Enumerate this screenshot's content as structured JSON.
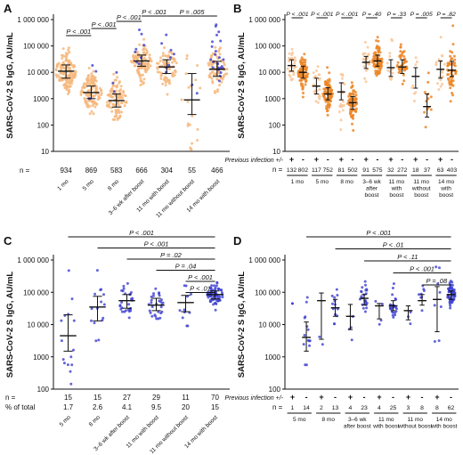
{
  "figure": {
    "ylabel": "SARS-CoV-2 S IgG, AU/mL",
    "y_ticks": [
      "1 000 000",
      "100 000",
      "10 000",
      "1000",
      "100",
      "10"
    ]
  },
  "chart_data": [
    {
      "id": "A",
      "type": "scatter",
      "ylabel": "SARS-CoV-2 S IgG, AU/mL",
      "yscale": "log",
      "ylim": [
        10,
        1000000
      ],
      "groups": [
        {
          "label": "1 mo",
          "n": "934",
          "median": 11000,
          "q1": 6000,
          "q3": 19000,
          "color": "orange"
        },
        {
          "label": "5 mo",
          "n": "869",
          "median": 1700,
          "q1": 1000,
          "q3": 3000,
          "color": "orange"
        },
        {
          "label": "8 mo",
          "n": "583",
          "median": 850,
          "q1": 480,
          "q3": 1500,
          "color": "orange"
        },
        {
          "label": "3–6 wk after boost",
          "n": "666",
          "median": 27000,
          "q1": 17000,
          "q3": 45000,
          "color": "orange"
        },
        {
          "label": "11 mo with boost",
          "n": "304",
          "median": 16000,
          "q1": 9000,
          "q3": 30000,
          "color": "orange"
        },
        {
          "label": "11 mo without boost",
          "n": "55",
          "median": 900,
          "q1": 250,
          "q3": 9000,
          "color": "orange"
        },
        {
          "label": "14 mo with boost",
          "n": "466",
          "median": 13000,
          "q1": 7000,
          "q3": 26000,
          "color": "orange"
        }
      ],
      "comparisons": [
        {
          "from": 0,
          "to": 1,
          "p": "P < .001"
        },
        {
          "from": 1,
          "to": 2,
          "p": "P < .001"
        },
        {
          "from": 2,
          "to": 3,
          "p": "P < .001"
        },
        {
          "from": 3,
          "to": 4,
          "p": "P < .001"
        },
        {
          "from": 4,
          "to": 6,
          "p": "P = .005"
        }
      ],
      "n_prefix": "n ="
    },
    {
      "id": "B",
      "type": "scatter",
      "yscale": "log",
      "ylim": [
        10,
        1000000
      ],
      "infection_label": "Previous infection +/-",
      "n_prefix": "n =",
      "groups": [
        {
          "sign": "+",
          "n": "132",
          "median": 18000,
          "q1": 11000,
          "q3": 30000,
          "color": "light"
        },
        {
          "sign": "-",
          "n": "802",
          "median": 10000,
          "q1": 6000,
          "q3": 17000,
          "color": "dark"
        },
        {
          "sign": "+",
          "n": "117",
          "median": 3000,
          "q1": 1500,
          "q3": 6000,
          "color": "light"
        },
        {
          "sign": "-",
          "n": "752",
          "median": 1500,
          "q1": 900,
          "q3": 2600,
          "color": "dark"
        },
        {
          "sign": "+",
          "n": "81",
          "median": 1800,
          "q1": 900,
          "q3": 4000,
          "color": "light"
        },
        {
          "sign": "-",
          "n": "502",
          "median": 700,
          "q1": 400,
          "q3": 1200,
          "color": "dark"
        },
        {
          "sign": "+",
          "n": "91",
          "median": 24000,
          "q1": 14000,
          "q3": 40000,
          "color": "light"
        },
        {
          "sign": "-",
          "n": "575",
          "median": 27000,
          "q1": 17000,
          "q3": 45000,
          "color": "dark"
        },
        {
          "sign": "+",
          "n": "32",
          "median": 15000,
          "q1": 7000,
          "q3": 30000,
          "color": "light"
        },
        {
          "sign": "-",
          "n": "272",
          "median": 16000,
          "q1": 9000,
          "q3": 30000,
          "color": "dark"
        },
        {
          "sign": "+",
          "n": "18",
          "median": 7000,
          "q1": 2500,
          "q3": 15000,
          "color": "light"
        },
        {
          "sign": "-",
          "n": "37",
          "median": 500,
          "q1": 200,
          "q3": 1500,
          "color": "dark"
        },
        {
          "sign": "+",
          "n": "63",
          "median": 13000,
          "q1": 6000,
          "q3": 27000,
          "color": "light"
        },
        {
          "sign": "-",
          "n": "403",
          "median": 12000,
          "q1": 7000,
          "q3": 26000,
          "color": "dark"
        }
      ],
      "group_labels": [
        "1 mo",
        "5 mo",
        "8 mo",
        "3–6 wk after boost",
        "11 mo with boost",
        "11 mo without boost",
        "14 mo with boost"
      ],
      "comparisons": [
        {
          "pair": 0,
          "p": "P < .001"
        },
        {
          "pair": 1,
          "p": "P < .001"
        },
        {
          "pair": 2,
          "p": "P < .001"
        },
        {
          "pair": 3,
          "p": "P = .40"
        },
        {
          "pair": 4,
          "p": "P = .33"
        },
        {
          "pair": 5,
          "p": "P = .005"
        },
        {
          "pair": 6,
          "p": "P = .82"
        }
      ]
    },
    {
      "id": "C",
      "type": "scatter",
      "ylabel": "SARS-CoV-2 S IgG, AU/mL",
      "yscale": "log",
      "ylim": [
        100,
        1000000
      ],
      "n_prefix": "n =",
      "pct_prefix": "% of total",
      "groups": [
        {
          "label": "5 mo",
          "n": "15",
          "pct": "1.7",
          "median": 4500,
          "q1": 1500,
          "q3": 20000
        },
        {
          "label": "8 mo",
          "n": "15",
          "pct": "2.6",
          "median": 35000,
          "q1": 13000,
          "q3": 75000
        },
        {
          "label": "3–6 wk after boost",
          "n": "27",
          "pct": "4.1",
          "median": 55000,
          "q1": 32000,
          "q3": 85000
        },
        {
          "label": "11 mo with boost",
          "n": "29",
          "pct": "9.5",
          "median": 40000,
          "q1": 27000,
          "q3": 65000
        },
        {
          "label": "11 mo without boost",
          "n": "11",
          "pct": "20",
          "median": 48000,
          "q1": 25000,
          "q3": 80000
        },
        {
          "label": "14 mo with boost",
          "n": "70",
          "pct": "15",
          "median": 85000,
          "q1": 62000,
          "q3": 110000
        }
      ],
      "comparisons": [
        {
          "from": 0,
          "to": 5,
          "p": "P < .001"
        },
        {
          "from": 1,
          "to": 5,
          "p": "P < .001"
        },
        {
          "from": 2,
          "to": 5,
          "p": "P = .02"
        },
        {
          "from": 3,
          "to": 5,
          "p": "P = .04"
        },
        {
          "from": 4,
          "to": 5,
          "p": "P < .001"
        },
        {
          "from": 4,
          "to": 5,
          "p": "P < .01"
        }
      ]
    },
    {
      "id": "D",
      "type": "scatter",
      "yscale": "log",
      "ylim": [
        100,
        1000000
      ],
      "infection_label": "Previous infection +/-",
      "n_prefix": "n =",
      "groups": [
        {
          "sign": "+",
          "n": "1",
          "median": null,
          "q1": null,
          "q3": null
        },
        {
          "sign": "-",
          "n": "14",
          "median": 4000,
          "q1": 1500,
          "q3": 12000
        },
        {
          "sign": "+",
          "n": "2",
          "median": 55000,
          "q1": 3500,
          "q3": 95000
        },
        {
          "sign": "-",
          "n": "13",
          "median": 33000,
          "q1": 18000,
          "q3": 60000
        },
        {
          "sign": "+",
          "n": "4",
          "median": 18000,
          "q1": 7000,
          "q3": 42000
        },
        {
          "sign": "-",
          "n": "23",
          "median": 65000,
          "q1": 40000,
          "q3": 85000
        },
        {
          "sign": "+",
          "n": "4",
          "median": 38000,
          "q1": 15000,
          "q3": 45000
        },
        {
          "sign": "-",
          "n": "25",
          "median": 38000,
          "q1": 27000,
          "q3": 55000
        },
        {
          "sign": "+",
          "n": "3",
          "median": 27000,
          "q1": 14000,
          "q3": 38000
        },
        {
          "sign": "-",
          "n": "8",
          "median": 55000,
          "q1": 40000,
          "q3": 85000
        },
        {
          "sign": "+",
          "n": "8",
          "median": 60000,
          "q1": 6000,
          "q3": 150000
        },
        {
          "sign": "-",
          "n": "62",
          "median": 85000,
          "q1": 60000,
          "q3": 110000
        }
      ],
      "group_labels": [
        "5 mo",
        "8 mo",
        "3–6 wk after boost",
        "11 mo with boost",
        "11 mo without boost",
        "14 mo with boost"
      ],
      "comparisons": [
        {
          "from": 1,
          "to": 11,
          "p": "P < .001"
        },
        {
          "from": 3,
          "to": 11,
          "p": "P < .01"
        },
        {
          "from": 5,
          "to": 11,
          "p": "P < .11"
        },
        {
          "from": 7,
          "to": 11,
          "p": "P < .001"
        },
        {
          "from": 9,
          "to": 11,
          "p": "P = .08"
        }
      ]
    }
  ]
}
